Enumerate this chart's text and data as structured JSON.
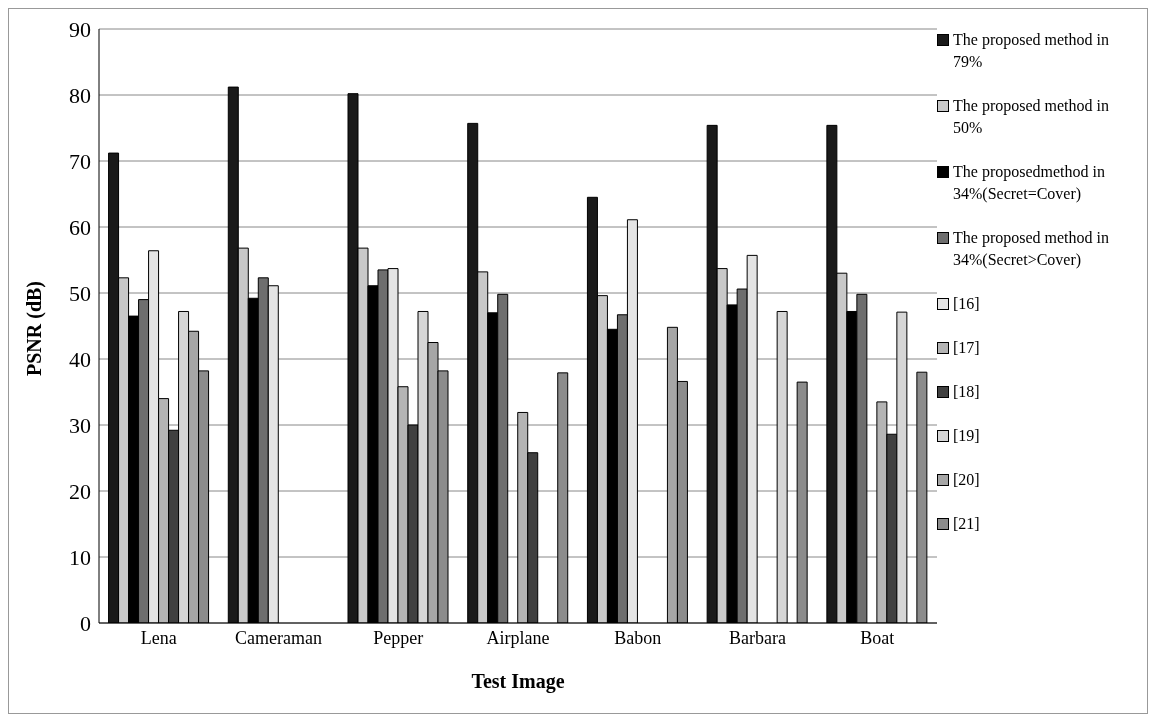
{
  "chart_data": {
    "type": "bar",
    "xlabel": "Test Image",
    "ylabel": "PSNR (dB)",
    "categories": [
      "Lena",
      "Cameraman",
      "Pepper",
      "Airplane",
      "Babon",
      "Barbara",
      "Boat"
    ],
    "series": [
      {
        "name": "The proposed method in 79%",
        "color": "#1a1a1a",
        "values": [
          71.2,
          81.2,
          80.2,
          75.7,
          64.5,
          75.4,
          75.4
        ]
      },
      {
        "name": "The proposed method in 50%",
        "color": "#c8c8c8",
        "values": [
          52.3,
          56.8,
          56.8,
          53.2,
          49.6,
          53.7,
          53
        ]
      },
      {
        "name": "The proposedmethod in 34%(Secret=Cover)",
        "color": "#000000",
        "values": [
          46.5,
          49.2,
          51.1,
          47,
          44.5,
          48.2,
          47.2
        ]
      },
      {
        "name": "The proposed method in 34%(Secret>Cover)",
        "color": "#6e6e6e",
        "values": [
          49,
          52.3,
          53.5,
          49.8,
          46.7,
          50.6,
          49.8
        ]
      },
      {
        "name": "[16]",
        "color": "#e4e4e4",
        "values": [
          56.4,
          51.1,
          53.7,
          null,
          61.1,
          55.7,
          null
        ]
      },
      {
        "name": "[17]",
        "color": "#b4b4b4",
        "values": [
          34,
          null,
          35.8,
          31.9,
          null,
          null,
          33.5
        ]
      },
      {
        "name": "[18]",
        "color": "#404040",
        "values": [
          29.2,
          null,
          30,
          25.8,
          null,
          null,
          28.6
        ]
      },
      {
        "name": "[19]",
        "color": "#d6d6d6",
        "values": [
          47.2,
          null,
          47.2,
          null,
          null,
          47.2,
          47.1
        ]
      },
      {
        "name": "[20]",
        "color": "#a6a6a6",
        "values": [
          44.2,
          null,
          42.5,
          null,
          44.8,
          null,
          null
        ]
      },
      {
        "name": "[21]",
        "color": "#8c8c8c",
        "values": [
          38.2,
          null,
          38.2,
          37.9,
          36.6,
          36.5,
          38
        ]
      }
    ],
    "ylim": [
      0,
      90
    ],
    "yticks": [
      0,
      10,
      20,
      30,
      40,
      50,
      60,
      70,
      80,
      90
    ],
    "grid": "y",
    "legend": "right"
  }
}
